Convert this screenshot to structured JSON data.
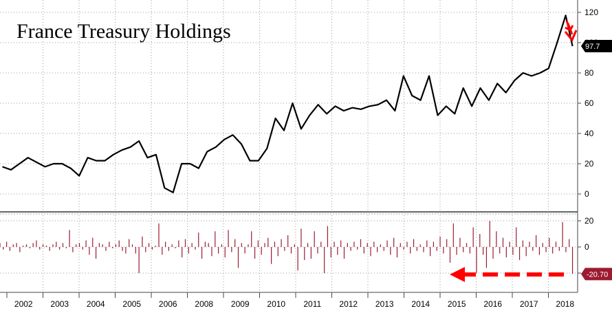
{
  "chart_data": [
    {
      "type": "line",
      "title": "France Treasury Holdings",
      "ylim": [
        -5,
        125
      ],
      "yticks": [
        0,
        20,
        40,
        60,
        80,
        100,
        120
      ],
      "grid": true,
      "last_value_label": "97.7",
      "series": [
        {
          "color": "#000000",
          "x": [
            2002.0,
            2002.25,
            2002.5,
            2002.75,
            2003.0,
            2003.25,
            2003.5,
            2003.75,
            2004.0,
            2004.25,
            2004.5,
            2004.75,
            2005.0,
            2005.25,
            2005.5,
            2005.75,
            2006.0,
            2006.25,
            2006.5,
            2006.75,
            2007.0,
            2007.25,
            2007.5,
            2007.75,
            2008.0,
            2008.25,
            2008.5,
            2008.75,
            2009.0,
            2009.25,
            2009.5,
            2009.75,
            2010.0,
            2010.25,
            2010.5,
            2010.75,
            2011.0,
            2011.25,
            2011.5,
            2011.75,
            2012.0,
            2012.25,
            2012.5,
            2012.75,
            2013.0,
            2013.25,
            2013.5,
            2013.75,
            2014.0,
            2014.25,
            2014.5,
            2014.75,
            2015.0,
            2015.25,
            2015.5,
            2015.75,
            2016.0,
            2016.25,
            2016.5,
            2016.75,
            2017.0,
            2017.25,
            2017.5,
            2017.75,
            2018.0,
            2018.25,
            2018.5,
            2018.7
          ],
          "values": [
            18,
            16,
            20,
            24,
            21,
            18,
            20,
            20,
            17,
            12,
            24,
            22,
            22,
            26,
            29,
            31,
            35,
            24,
            26,
            4,
            1,
            20,
            20,
            17,
            28,
            31,
            36,
            39,
            33,
            22,
            22,
            30,
            50,
            42,
            60,
            43,
            52,
            59,
            53,
            58,
            55,
            57,
            56,
            58,
            59,
            62,
            55,
            78,
            65,
            62,
            78,
            52,
            58,
            53,
            70,
            58,
            70,
            62,
            73,
            67,
            75,
            80,
            78,
            80,
            83,
            100,
            118,
            97.7
          ]
        }
      ]
    },
    {
      "type": "bar",
      "ylim": [
        -25,
        25
      ],
      "yticks": [
        20,
        0,
        -20
      ],
      "last_value_label": "-20.70",
      "color": "#9b1b30",
      "x_start": 2001.93,
      "x_end": 2018.7,
      "values": [
        3,
        -2,
        4,
        -3,
        2,
        3,
        -4,
        1,
        2,
        -1,
        3,
        5,
        -2,
        2,
        1,
        -3,
        2,
        4,
        -2,
        3,
        -1,
        13,
        -4,
        2,
        3,
        -2,
        5,
        -6,
        7,
        -9,
        3,
        2,
        -3,
        4,
        -1,
        2,
        5,
        -3,
        -5,
        6,
        2,
        -5,
        -20,
        8,
        -4,
        3,
        -2,
        1,
        18,
        -6,
        4,
        -3,
        2,
        -1,
        5,
        -8,
        6,
        -5,
        3,
        -2,
        11,
        -9,
        4,
        3,
        -7,
        12,
        -5,
        2,
        -8,
        13,
        -4,
        6,
        -16,
        3,
        -5,
        2,
        12,
        -9,
        5,
        -6,
        3,
        7,
        -13,
        4,
        -7,
        6,
        -3,
        9,
        -5,
        2,
        -18,
        14,
        -10,
        3,
        -9,
        12,
        -5,
        4,
        -20,
        16,
        -8,
        4,
        -6,
        5,
        -9,
        3,
        -3,
        4,
        -2,
        6,
        -5,
        3,
        -7,
        4,
        -4,
        2,
        -3,
        5,
        -6,
        7,
        -8,
        3,
        -2,
        4,
        -5,
        6,
        -3,
        2,
        -4,
        5,
        -7,
        4,
        -3,
        8,
        -5,
        6,
        -12,
        18,
        -6,
        7,
        -4,
        3,
        -5,
        15,
        -20,
        10,
        -6,
        -16,
        20,
        -9,
        12,
        -5,
        7,
        -8,
        4,
        -6,
        15,
        -10,
        5,
        -7,
        4,
        -3,
        9,
        -6,
        3,
        -4,
        7,
        -5,
        4,
        -3,
        19,
        -4,
        6,
        -20.7
      ]
    },
    {
      "type": "axis",
      "x_tick_labels": [
        "2002",
        "2003",
        "2004",
        "2005",
        "2006",
        "2008",
        "2009",
        "2010",
        "2011",
        "2012",
        "2013",
        "2014",
        "2015",
        "2016",
        "2017",
        "2018"
      ]
    }
  ]
}
